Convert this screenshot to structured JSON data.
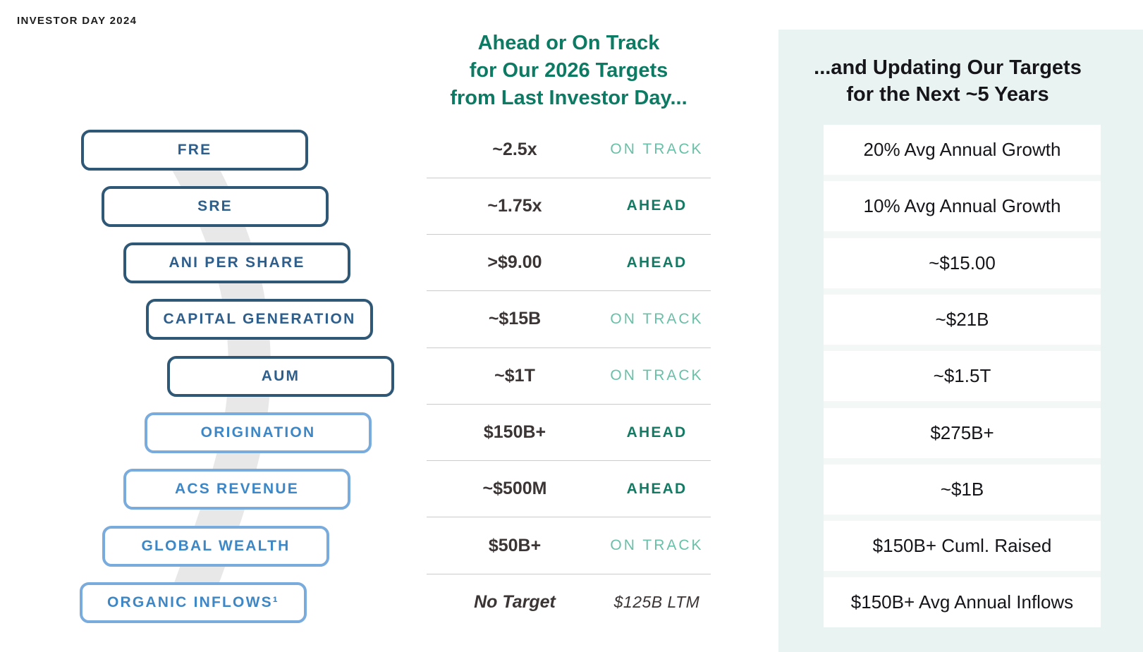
{
  "eyebrow": "INVESTOR DAY 2024",
  "colors": {
    "teal_heading": "#0D7B63",
    "ahead_green": "#147A64",
    "on_track_green": "#69C0A8",
    "navy_border": "#2F5877",
    "navy_text": "#2D5E8C",
    "blue_border": "#79ABDC",
    "blue_text": "#3D87C7",
    "value_text": "#3B3535",
    "dark_heading": "#15151A",
    "panel_mint": "#E9F3F1",
    "panel_mint_light": "#F3F8F7",
    "divider_gray": "#CBCBCB",
    "ribbon_gray": "#E8E8E8"
  },
  "left_metrics": [
    {
      "label": "FRE",
      "variant": "dark"
    },
    {
      "label": "SRE",
      "variant": "dark"
    },
    {
      "label": "ANI PER SHARE",
      "variant": "dark"
    },
    {
      "label": "CAPITAL GENERATION",
      "variant": "dark"
    },
    {
      "label": "AUM",
      "variant": "dark"
    },
    {
      "label": "ORIGINATION",
      "variant": "light"
    },
    {
      "label": "ACS REVENUE",
      "variant": "light"
    },
    {
      "label": "GLOBAL WEALTH",
      "variant": "light"
    },
    {
      "label": "ORGANIC INFLOWS¹",
      "variant": "light"
    }
  ],
  "middle": {
    "heading_lines": [
      "Ahead or On Track",
      "for Our 2026 Targets",
      "from Last Investor Day..."
    ],
    "rows": [
      {
        "target": "~2.5x",
        "status": "ON TRACK",
        "status_type": "on-track"
      },
      {
        "target": "~1.75x",
        "status": "AHEAD",
        "status_type": "ahead"
      },
      {
        "target": ">$9.00",
        "status": "AHEAD",
        "status_type": "ahead"
      },
      {
        "target": "~$15B",
        "status": "ON TRACK",
        "status_type": "on-track"
      },
      {
        "target": "~$1T",
        "status": "ON TRACK",
        "status_type": "on-track"
      },
      {
        "target": "$150B+",
        "status": "AHEAD",
        "status_type": "ahead"
      },
      {
        "target": "~$500M",
        "status": "AHEAD",
        "status_type": "ahead"
      },
      {
        "target": "$50B+",
        "status": "ON TRACK",
        "status_type": "on-track"
      },
      {
        "target": "No Target",
        "status": "$125B LTM",
        "status_type": "note"
      }
    ]
  },
  "right": {
    "heading_lines": [
      "...and Updating Our Targets",
      "for the Next ~5 Years"
    ],
    "rows": [
      "20% Avg Annual Growth",
      "10% Avg Annual Growth",
      "~$15.00",
      "~$21B",
      "~$1.5T",
      "$275B+",
      "~$1B",
      "$150B+ Cuml. Raised",
      "$150B+ Avg Annual Inflows"
    ]
  }
}
